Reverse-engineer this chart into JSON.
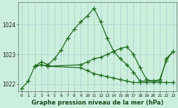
{
  "title": "Graphe pression niveau de la mer (hPa)",
  "bg_color": "#cceedd",
  "grid_color": "#aacccc",
  "line_color": "#1a6b1a",
  "xlim": [
    -0.5,
    23.5
  ],
  "ylim": [
    1021.75,
    1024.75
  ],
  "yticks": [
    1022,
    1023,
    1024
  ],
  "xticks": [
    0,
    1,
    2,
    3,
    4,
    5,
    6,
    7,
    8,
    9,
    10,
    11,
    12,
    13,
    14,
    15,
    16,
    17,
    18,
    19,
    20,
    21,
    22,
    23
  ],
  "series1": {
    "x": [
      0,
      1,
      2,
      3,
      4,
      5,
      6,
      7,
      8,
      9,
      10,
      11,
      12,
      13,
      14,
      15,
      16,
      17,
      18,
      19,
      20,
      21,
      22,
      23
    ],
    "y": [
      1021.85,
      1022.1,
      1022.6,
      1022.75,
      1022.65,
      1022.85,
      1023.15,
      1023.55,
      1023.85,
      1024.1,
      1024.3,
      1024.55,
      1024.1,
      1023.55,
      1023.1,
      1022.85,
      1022.65,
      1022.4,
      1022.1,
      1022.1,
      1022.1,
      1022.1,
      1022.85,
      1023.1
    ]
  },
  "series2": {
    "x": [
      2,
      3,
      4,
      9,
      10,
      11,
      12,
      13,
      14,
      15,
      16,
      17,
      18,
      19,
      20,
      21,
      22,
      23
    ],
    "y": [
      1022.6,
      1022.65,
      1022.6,
      1022.65,
      1022.75,
      1022.85,
      1022.9,
      1023.0,
      1023.1,
      1023.2,
      1023.25,
      1023.0,
      1022.55,
      1022.15,
      1022.1,
      1022.15,
      1022.8,
      1023.1
    ]
  },
  "series3": {
    "x": [
      2,
      3,
      4,
      9,
      10,
      11,
      12,
      13,
      14,
      15,
      16,
      17,
      18,
      19,
      20,
      21,
      22,
      23
    ],
    "y": [
      1022.6,
      1022.65,
      1022.6,
      1022.55,
      1022.45,
      1022.35,
      1022.3,
      1022.25,
      1022.2,
      1022.15,
      1022.1,
      1022.05,
      1022.05,
      1022.05,
      1022.05,
      1022.05,
      1022.05,
      1022.05
    ]
  },
  "marker": "+",
  "markersize": 4,
  "linewidth": 0.9
}
